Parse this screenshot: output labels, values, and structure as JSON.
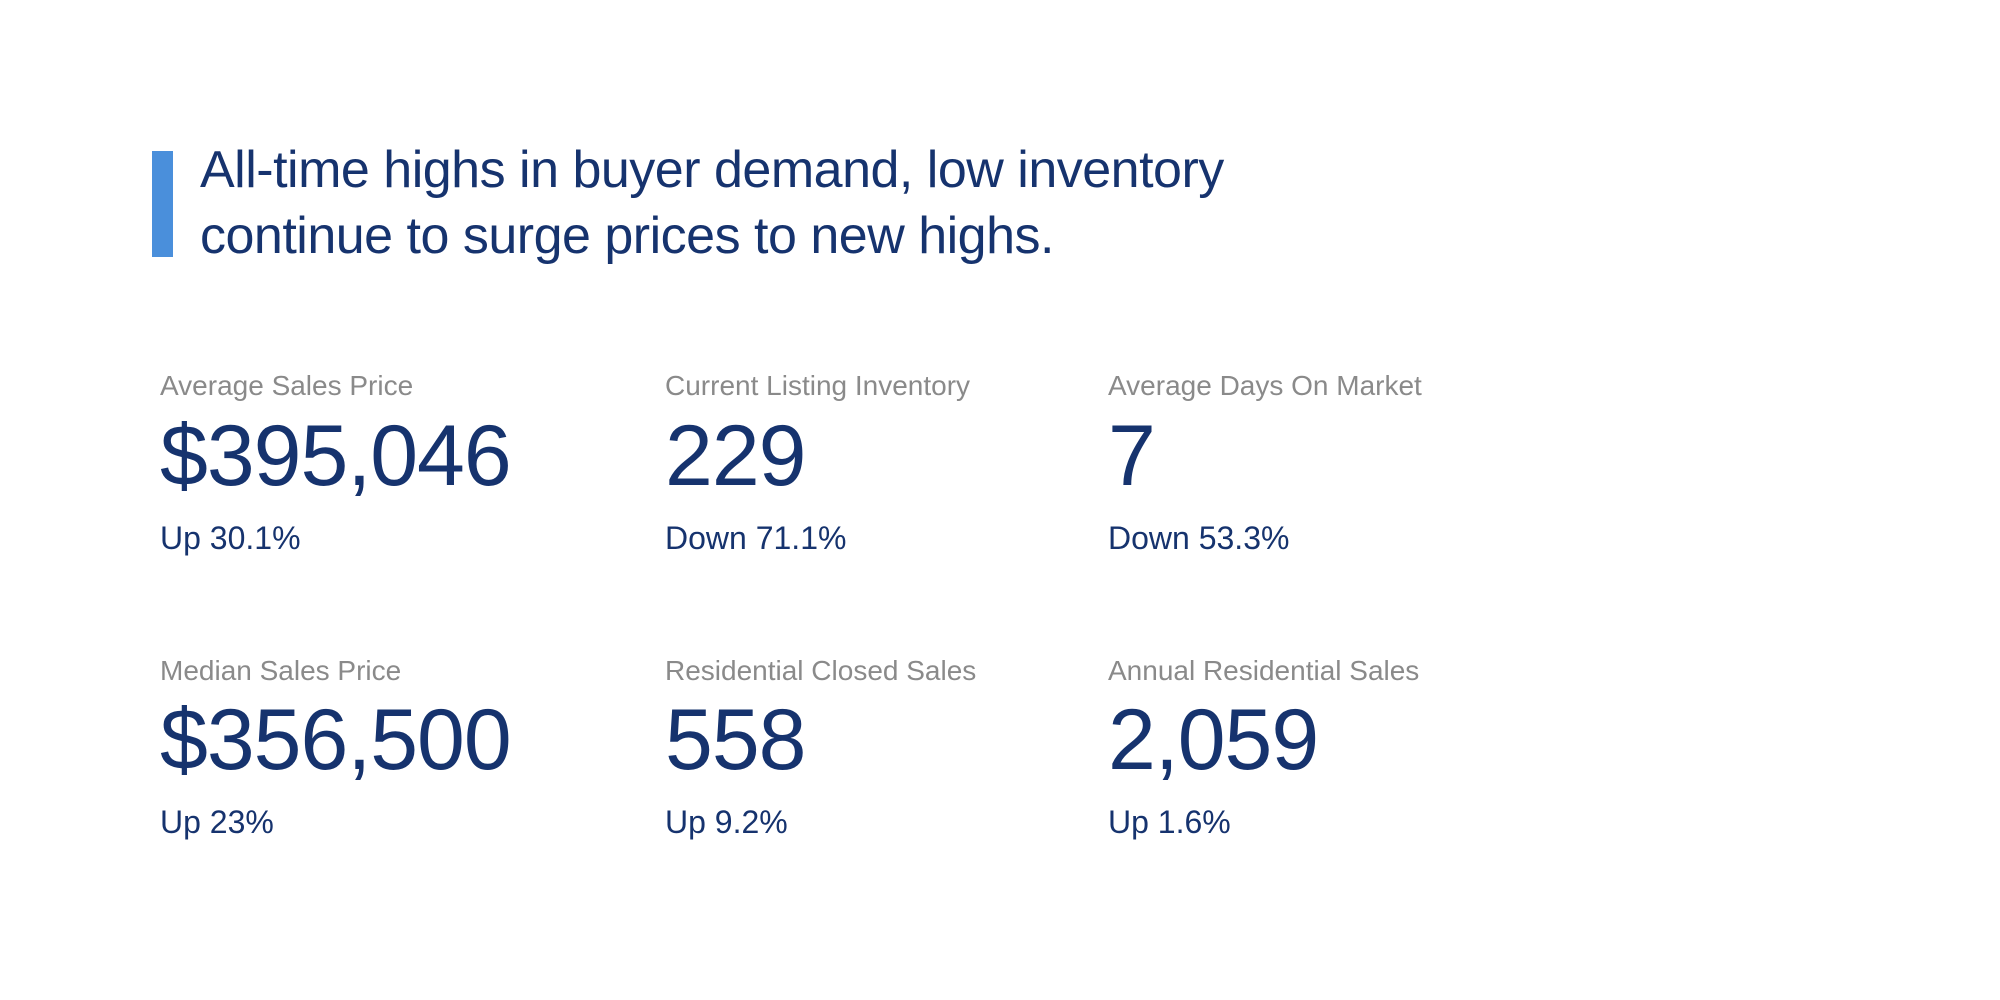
{
  "colors": {
    "accent_blue": "#4A8FDB",
    "navy_text": "#16336E",
    "label_gray": "#8A8A8A",
    "background": "#FFFFFF"
  },
  "headline": {
    "line1": "All-time highs in buyer demand, low inventory",
    "line2": "continue to surge prices to new highs."
  },
  "stats": [
    {
      "label": "Average Sales Price",
      "value": "$395,046",
      "change": "Up 30.1%"
    },
    {
      "label": "Current Listing Inventory",
      "value": "229",
      "change": "Down 71.1%"
    },
    {
      "label": "Average Days On Market",
      "value": "7",
      "change": "Down 53.3%"
    },
    {
      "label": "Median Sales Price",
      "value": "$356,500",
      "change": "Up 23%"
    },
    {
      "label": "Residential Closed Sales",
      "value": "558",
      "change": "Up 9.2%"
    },
    {
      "label": "Annual Residential Sales",
      "value": "2,059",
      "change": "Up 1.6%"
    }
  ]
}
